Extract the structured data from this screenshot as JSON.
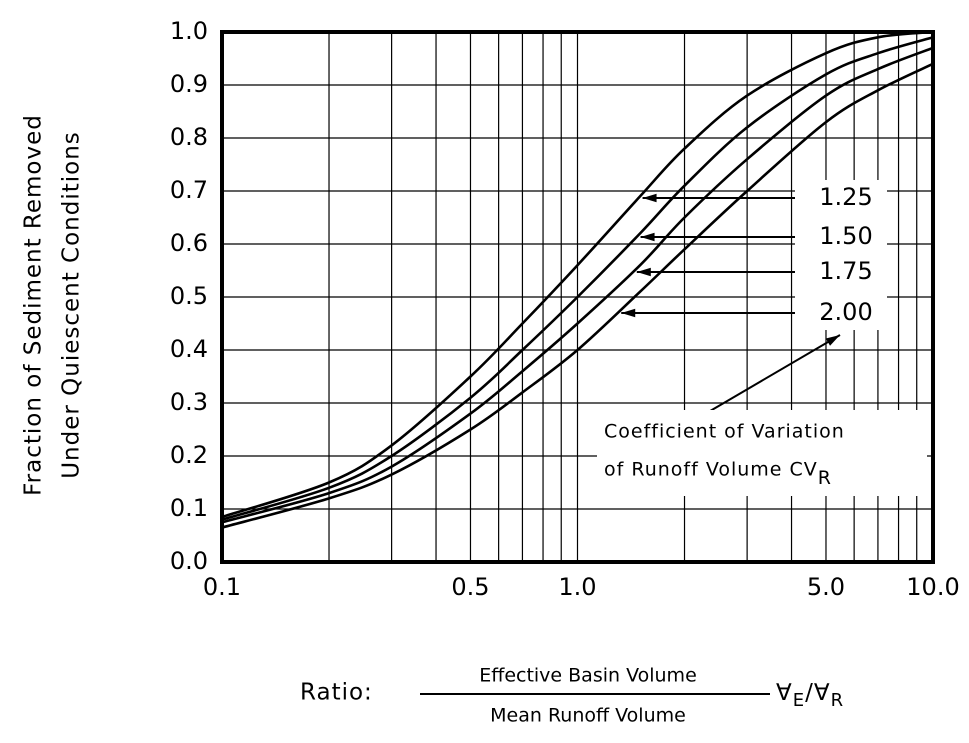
{
  "chart_data": {
    "type": "line",
    "ylabel": [
      "Fraction of Sediment Removed",
      "Under Quiescent Conditions"
    ],
    "xlabel": {
      "prefix": "Ratio:",
      "numerator": "Effective Basin Volume",
      "denominator": "Mean Runoff Volume",
      "symbol": [
        "∀",
        "E",
        "/∀",
        "R"
      ]
    },
    "annotation": {
      "lines": [
        "Coefficient of Variation",
        "of Runoff Volume CV"
      ],
      "subscript": "R"
    },
    "x": [
      0.1,
      0.2,
      0.3,
      0.5,
      0.7,
      1,
      1.5,
      2,
      3,
      5,
      7,
      10
    ],
    "series": [
      {
        "name": "1.25",
        "color": "#000000",
        "values": [
          0.085,
          0.15,
          0.22,
          0.35,
          0.45,
          0.56,
          0.69,
          0.78,
          0.88,
          0.96,
          0.99,
          1.0
        ]
      },
      {
        "name": "1.50",
        "color": "#000000",
        "values": [
          0.08,
          0.14,
          0.2,
          0.31,
          0.4,
          0.5,
          0.62,
          0.71,
          0.82,
          0.92,
          0.96,
          0.99
        ]
      },
      {
        "name": "1.75",
        "color": "#000000",
        "values": [
          0.075,
          0.13,
          0.18,
          0.28,
          0.36,
          0.45,
          0.56,
          0.65,
          0.76,
          0.88,
          0.93,
          0.97
        ]
      },
      {
        "name": "2.00",
        "color": "#000000",
        "values": [
          0.065,
          0.12,
          0.165,
          0.25,
          0.32,
          0.4,
          0.51,
          0.59,
          0.7,
          0.83,
          0.89,
          0.94
        ]
      }
    ],
    "xscale": "log",
    "xlim": [
      0.1,
      10
    ],
    "xticks": [
      0.1,
      0.5,
      {
        "value": 1,
        "label": "1.0"
      },
      {
        "value": 5,
        "label": "5.0"
      },
      {
        "value": 10,
        "label": "10.0"
      }
    ],
    "xgrid": [
      0.2,
      0.3,
      0.4,
      0.6,
      0.7,
      0.8,
      0.9,
      2,
      3,
      4,
      6,
      7,
      8,
      9
    ],
    "ylim": [
      0,
      1
    ],
    "yticks": [
      {
        "value": 0,
        "label": "0.0"
      },
      0.1,
      0.2,
      0.3,
      0.4,
      0.5,
      0.6,
      0.7,
      0.8,
      0.9,
      {
        "value": 1,
        "label": "1.0"
      }
    ],
    "grid": true
  }
}
